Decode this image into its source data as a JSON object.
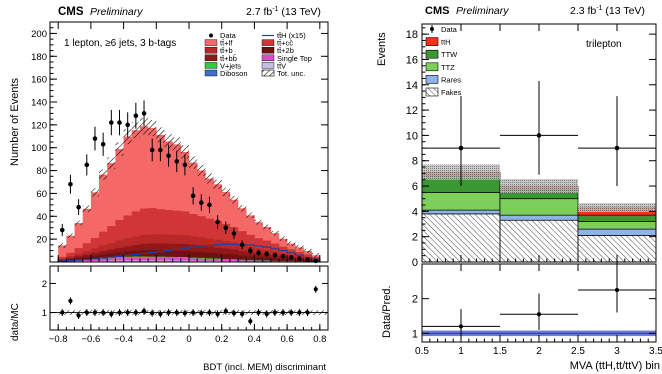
{
  "chart_data": [
    {
      "type": "bar",
      "header": {
        "experiment": "CMS",
        "status": "Preliminary",
        "lumi": "2.7 fb",
        "lumi_sup": "-1",
        "energy": " (13 TeV)"
      },
      "annotation": "1 lepton, ≥6 jets, 3 b-tags",
      "xlabel": "BDT (incl. MEM) discriminant",
      "ylabel_main": "Number of Events",
      "ylabel_ratio": "data/MC",
      "xlim": [
        -0.85,
        0.85
      ],
      "ylim_main": [
        0,
        210
      ],
      "ylim_ratio": [
        0.4,
        2.6
      ],
      "x_ticks": [
        "-0.8",
        "-0.6",
        "-0.4",
        "-0.2",
        "0",
        "0.2",
        "0.4",
        "0.6",
        "0.8"
      ],
      "y_ticks_main": [
        "20",
        "40",
        "60",
        "80",
        "100",
        "120",
        "140",
        "160",
        "180",
        "200"
      ],
      "y_ticks_ratio": [
        "1",
        "2"
      ],
      "bin_edges": [
        -0.85,
        -0.8,
        -0.75,
        -0.7,
        -0.65,
        -0.6,
        -0.55,
        -0.5,
        -0.45,
        -0.4,
        -0.35,
        -0.3,
        -0.25,
        -0.2,
        -0.15,
        -0.1,
        -0.05,
        0.0,
        0.05,
        0.1,
        0.15,
        0.2,
        0.25,
        0.3,
        0.35,
        0.4,
        0.45,
        0.5,
        0.55,
        0.6,
        0.65,
        0.7,
        0.75,
        0.8,
        0.85
      ],
      "stack_bins": [
        -0.8,
        -0.75,
        -0.7,
        -0.65,
        -0.6,
        -0.55,
        -0.5,
        -0.45,
        -0.4,
        -0.35,
        -0.3,
        -0.25,
        -0.2,
        -0.15,
        -0.1,
        -0.05,
        0.0,
        0.05,
        0.1,
        0.15,
        0.2,
        0.25,
        0.3,
        0.35,
        0.4,
        0.45,
        0.5,
        0.55,
        0.6,
        0.65,
        0.7,
        0.75,
        0.8
      ],
      "series": [
        {
          "name": "Diboson",
          "color": "#3f6fc4",
          "values": [
            0.2,
            0.2,
            0.3,
            0.3,
            0.4,
            0.4,
            0.5,
            0.5,
            0.5,
            0.5,
            0.5,
            0.5,
            0.5,
            0.5,
            0.5,
            0.5,
            0.4,
            0.4,
            0.4,
            0.3,
            0.3,
            0.3,
            0.2,
            0.2,
            0.2,
            0.2,
            0.1,
            0.1,
            0.1,
            0.1,
            0.1,
            0.1
          ]
        },
        {
          "name": "tt̄V",
          "color": "#c8b8e8",
          "values": [
            0.2,
            0.3,
            0.4,
            0.5,
            0.5,
            0.6,
            0.7,
            0.8,
            0.8,
            0.8,
            0.8,
            0.8,
            0.8,
            0.8,
            0.8,
            0.8,
            0.7,
            0.7,
            0.6,
            0.6,
            0.5,
            0.5,
            0.4,
            0.4,
            0.3,
            0.3,
            0.2,
            0.2,
            0.2,
            0.1,
            0.1,
            0.1
          ]
        },
        {
          "name": "Single Top",
          "color": "#d94dc8",
          "values": [
            0.5,
            0.8,
            1.0,
            1.2,
            1.5,
            1.8,
            2.0,
            2.2,
            2.5,
            2.6,
            2.6,
            2.5,
            2.5,
            2.4,
            2.3,
            2.2,
            2.0,
            1.8,
            1.6,
            1.5,
            1.3,
            1.2,
            1.0,
            0.8,
            0.7,
            0.6,
            0.5,
            0.4,
            0.3,
            0.3,
            0.2,
            0.2
          ]
        },
        {
          "name": "V+jets",
          "color": "#33cc33",
          "values": [
            0.2,
            0.3,
            0.4,
            0.5,
            0.6,
            0.7,
            0.8,
            0.8,
            0.9,
            0.9,
            0.9,
            0.9,
            0.9,
            0.8,
            0.8,
            0.8,
            0.7,
            0.7,
            0.6,
            0.6,
            0.5,
            0.5,
            0.4,
            0.4,
            0.3,
            0.3,
            0.2,
            0.2,
            0.2,
            0.1,
            0.1,
            0.1
          ]
        },
        {
          "name": "tt̄+2b",
          "color": "#701010",
          "values": [
            0.5,
            1.0,
            1.5,
            2.0,
            2.5,
            3.0,
            3.5,
            4.0,
            4.5,
            5.0,
            5.5,
            5.5,
            5.5,
            5.5,
            5.5,
            5.5,
            5.2,
            5.0,
            4.8,
            4.5,
            4.2,
            4.0,
            3.5,
            3.0,
            2.8,
            2.5,
            2.2,
            2.0,
            1.5,
            1.2,
            1.0,
            0.6
          ]
        },
        {
          "name": "tt̄+bb̄",
          "color": "#901818",
          "values": [
            0.5,
            1.0,
            1.5,
            2.0,
            2.5,
            3.0,
            3.5,
            4.0,
            4.5,
            5.0,
            5.5,
            6.0,
            6.0,
            6.0,
            6.0,
            6.0,
            6.0,
            5.5,
            5.5,
            5.0,
            5.0,
            4.5,
            4.0,
            3.5,
            3.0,
            2.8,
            2.5,
            2.0,
            1.8,
            1.5,
            1.2,
            0.8
          ]
        },
        {
          "name": "tt̄+b",
          "color": "#b82828",
          "values": [
            0.8,
            1.5,
            2.0,
            3.0,
            4.0,
            5.0,
            5.5,
            6.5,
            7.0,
            7.5,
            8.0,
            8.0,
            8.0,
            8.0,
            8.0,
            8.0,
            7.5,
            7.5,
            7.0,
            7.0,
            6.5,
            6.0,
            5.5,
            5.0,
            4.5,
            4.0,
            3.5,
            3.0,
            2.5,
            2.0,
            1.5,
            1.0
          ]
        },
        {
          "name": "tt̄+cc̄",
          "color": "#d13535",
          "values": [
            1.6,
            3.0,
            5.0,
            7.0,
            9.0,
            12.0,
            15.0,
            18.0,
            20.0,
            22.0,
            23.0,
            23.0,
            22.0,
            21.5,
            21.0,
            20.5,
            19.5,
            18.5,
            17.5,
            16.5,
            15.0,
            13.5,
            12.0,
            10.5,
            9.0,
            8.0,
            7.0,
            5.5,
            4.5,
            3.5,
            2.5,
            1.5
          ]
        },
        {
          "name": "tt̄+lf",
          "color": "#f56868",
          "values": [
            10.0,
            15.0,
            22.0,
            30.0,
            40.0,
            50.0,
            55.0,
            62.0,
            69.0,
            71.0,
            72.0,
            70.0,
            65.0,
            60.0,
            58.0,
            52.0,
            45.0,
            40.0,
            35.0,
            32.0,
            28.0,
            24.0,
            20.0,
            17.0,
            14.0,
            12.0,
            9.0,
            7.0,
            5.0,
            4.0,
            3.0,
            1.5
          ]
        }
      ],
      "tth_signal": {
        "name": "tt̄H (x15)",
        "color": "#2040a0",
        "values": [
          0.8,
          1.2,
          1.6,
          2.2,
          2.8,
          3.5,
          4.2,
          5.0,
          5.8,
          6.6,
          7.4,
          8.2,
          9.0,
          10.0,
          11.0,
          12.0,
          13.0,
          14.0,
          14.5,
          15.0,
          15.5,
          15.5,
          15.2,
          14.8,
          14.0,
          13.0,
          11.5,
          10.0,
          8.0,
          6.0,
          4.0,
          2.5
        ]
      },
      "data_points": {
        "name": "Data",
        "values": [
          28,
          68,
          48,
          85,
          108,
          103,
          122,
          122,
          120,
          128,
          130,
          98,
          98,
          93,
          88,
          85,
          58,
          52,
          50,
          35,
          30,
          25,
          15,
          10,
          8,
          7,
          6,
          5,
          4,
          3,
          2,
          1
        ]
      },
      "ratio_points": {
        "name": "data/MC",
        "values": [
          1.0,
          1.4,
          0.9,
          1.0,
          1.0,
          1.0,
          0.95,
          1.0,
          1.0,
          1.0,
          1.05,
          0.98,
          0.95,
          1.0,
          1.0,
          0.98,
          1.0,
          0.98,
          1.0,
          0.95,
          1.05,
          0.98,
          0.95,
          0.7,
          1.0,
          0.95,
          1.0,
          1.0,
          1.0,
          1.0,
          1.0,
          1.8
        ]
      },
      "legend": [
        {
          "label": "Data",
          "kind": "marker"
        },
        {
          "label": "tt̄H (x15)",
          "kind": "line",
          "color": "#2040a0"
        },
        {
          "label": "tt̄+lf",
          "kind": "box",
          "color": "#f56868"
        },
        {
          "label": "tt̄+cc̄",
          "kind": "box",
          "color": "#d13535"
        },
        {
          "label": "tt̄+b",
          "kind": "box",
          "color": "#b82828"
        },
        {
          "label": "tt̄+2b",
          "kind": "box",
          "color": "#701010"
        },
        {
          "label": "tt̄+bb̄",
          "kind": "box",
          "color": "#901818"
        },
        {
          "label": "Single Top",
          "kind": "box",
          "color": "#d94dc8"
        },
        {
          "label": "V+jets",
          "kind": "box",
          "color": "#33cc33"
        },
        {
          "label": "tt̄V",
          "kind": "box",
          "color": "#c8b8e8"
        },
        {
          "label": "Diboson",
          "kind": "box",
          "color": "#3f6fc4"
        },
        {
          "label": "Tot. unc.",
          "kind": "hatch"
        }
      ]
    },
    {
      "type": "bar",
      "header": {
        "experiment": "CMS",
        "status": "Preliminary",
        "lumi": "2.3 fb",
        "lumi_sup": "-1",
        "energy": " (13 TeV)"
      },
      "annotation": "trilepton",
      "xlabel": "MVA (ttH,tt/ttV) bin",
      "ylabel_main": "Events",
      "ylabel_ratio": "Data/Pred.",
      "xlim": [
        0.5,
        3.5
      ],
      "ylim_main": [
        0,
        18.8
      ],
      "ylim_ratio": [
        0.75,
        3.0
      ],
      "x_ticks": [
        "0.5",
        "1",
        "1.5",
        "2",
        "2.5",
        "3",
        "3.5"
      ],
      "y_ticks_main": [
        "0",
        "2",
        "4",
        "6",
        "8",
        "10",
        "12",
        "14",
        "16",
        "18"
      ],
      "y_ticks_ratio": [
        "1",
        "2"
      ],
      "bin_edges": [
        0.5,
        1.5,
        2.5,
        3.5
      ],
      "series": [
        {
          "name": "Fakes",
          "color": "#ffffff",
          "hatched": true,
          "values": [
            3.8,
            3.3,
            2.1
          ]
        },
        {
          "name": "Rares",
          "color": "#8fb3e6",
          "values": [
            0.3,
            0.4,
            0.5
          ]
        },
        {
          "name": "TTZ",
          "color": "#7ccf5b",
          "values": [
            1.4,
            1.3,
            0.6
          ]
        },
        {
          "name": "TTW",
          "color": "#3c9632",
          "values": [
            1.3,
            0.7,
            0.5
          ]
        },
        {
          "name": "ttH",
          "color": "#f53214",
          "values": [
            0.3,
            0.3,
            0.6
          ]
        }
      ],
      "total_uncertainty": [
        0.6,
        0.55,
        0.35
      ],
      "data_points": {
        "name": "Data",
        "values": [
          9,
          10,
          9
        ],
        "err_up": [
          4.1,
          4.3,
          4.1
        ],
        "err_down": [
          3.0,
          3.1,
          3.0
        ]
      },
      "ratio_points": {
        "name": "Data/Pred.",
        "values": [
          1.2,
          1.55,
          2.25
        ],
        "err_up": [
          0.5,
          0.6,
          0.8
        ],
        "err_down": [
          0.4,
          0.45,
          0.65
        ]
      },
      "ratio_band": [
        0.08,
        0.08,
        0.08
      ],
      "legend": [
        {
          "label": "Data",
          "kind": "marker"
        },
        {
          "label": "ttH",
          "kind": "box",
          "color": "#f53214"
        },
        {
          "label": "TTW",
          "kind": "box",
          "color": "#3c9632"
        },
        {
          "label": "TTZ",
          "kind": "box",
          "color": "#7ccf5b"
        },
        {
          "label": "Rares",
          "kind": "box",
          "color": "#8fb3e6"
        },
        {
          "label": "Fakes",
          "kind": "hatch"
        }
      ]
    }
  ]
}
